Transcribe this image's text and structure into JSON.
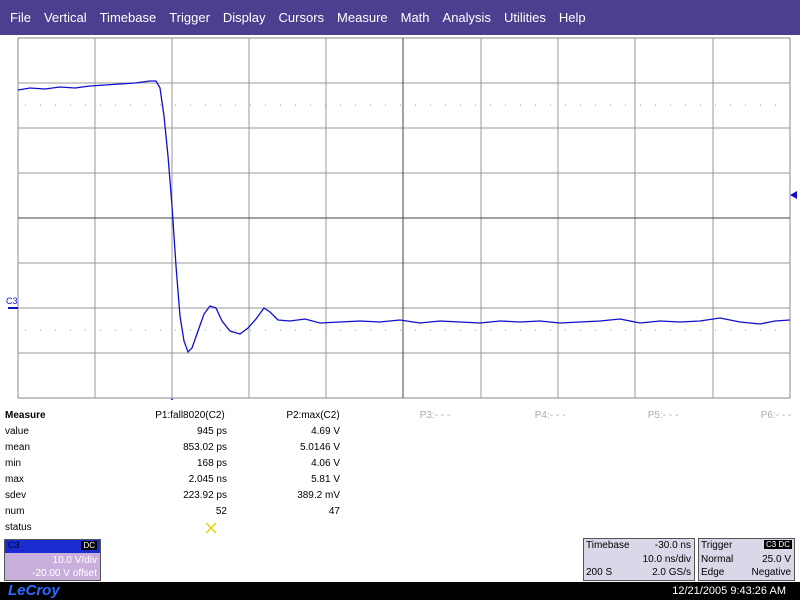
{
  "menu": [
    "File",
    "Vertical",
    "Timebase",
    "Trigger",
    "Display",
    "Cursors",
    "Measure",
    "Math",
    "Analysis",
    "Utilities",
    "Help"
  ],
  "trace_label": "C3",
  "measure": {
    "title": "Measure",
    "headers": [
      "P1:fall8020(C2)",
      "P2:max(C2)",
      "P3:- - -",
      "P4:- - -",
      "P5:- - -",
      "P6:- - -"
    ],
    "rows": [
      {
        "label": "value",
        "cells": [
          "945 ps",
          "4.69 V"
        ]
      },
      {
        "label": "mean",
        "cells": [
          "853.02 ps",
          "5.0146 V"
        ]
      },
      {
        "label": "min",
        "cells": [
          "168 ps",
          "4.06 V"
        ]
      },
      {
        "label": "max",
        "cells": [
          "2.045 ns",
          "5.81 V"
        ]
      },
      {
        "label": "sdev",
        "cells": [
          "223.92 ps",
          "389.2 mV"
        ]
      },
      {
        "label": "num",
        "cells": [
          "52",
          "47"
        ]
      },
      {
        "label": "status",
        "cells": []
      }
    ]
  },
  "channel": {
    "name": "C3",
    "coupling": "DC",
    "scale": "10.0 V/div",
    "offset": "-20.00 V offset"
  },
  "timebase": {
    "title": "Timebase",
    "delay": "-30.0 ns",
    "scale": "10.0 ns/div",
    "samples": "200 S",
    "rate": "2.0 GS/s"
  },
  "trigger": {
    "title": "Trigger",
    "source": "C3 DC",
    "mode": "Normal",
    "level": "25.0 V",
    "type": "Edge",
    "slope": "Negative"
  },
  "footer": {
    "brand": "LeCroy",
    "timestamp": "12/21/2005 9:43:26 AM"
  }
}
